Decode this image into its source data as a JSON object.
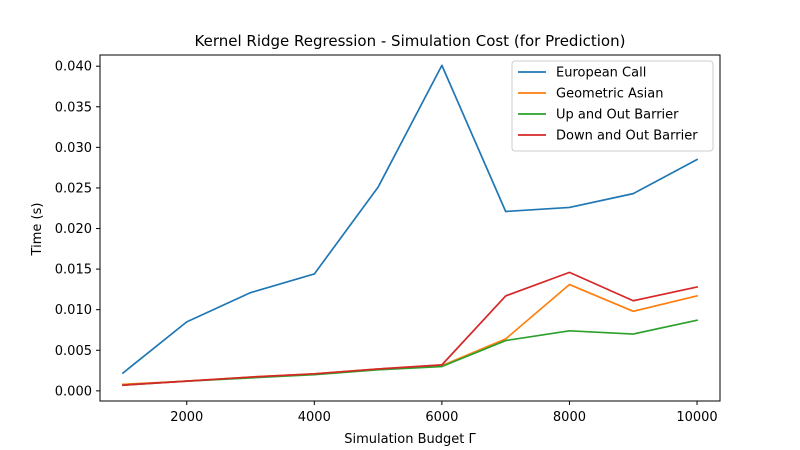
{
  "chart_data": {
    "type": "line",
    "title": "Kernel Ridge Regression - Simulation Cost (for Prediction)",
    "xlabel": "Simulation Budget Γ",
    "ylabel": "Time (s)",
    "x": [
      1000,
      2000,
      3000,
      4000,
      5000,
      6000,
      7000,
      8000,
      9000,
      10000
    ],
    "xlim": [
      640,
      10360
    ],
    "ylim": [
      -0.00125,
      0.04138
    ],
    "xticks": [
      2000,
      4000,
      6000,
      8000,
      10000
    ],
    "xtick_labels": [
      "2000",
      "4000",
      "6000",
      "8000",
      "10000"
    ],
    "yticks": [
      0.0,
      0.005,
      0.01,
      0.015,
      0.02,
      0.025,
      0.03,
      0.035,
      0.04
    ],
    "ytick_labels": [
      "0.000",
      "0.005",
      "0.010",
      "0.015",
      "0.020",
      "0.025",
      "0.030",
      "0.035",
      "0.040"
    ],
    "grid": false,
    "legend_position": "top-right",
    "series": [
      {
        "name": "European Call",
        "color": "#1f77b4",
        "values": [
          0.0022,
          0.0085,
          0.0121,
          0.0144,
          0.0251,
          0.0401,
          0.0221,
          0.0226,
          0.0243,
          0.0285
        ]
      },
      {
        "name": "Geometric Asian",
        "color": "#ff7f0e",
        "values": [
          0.0008,
          0.0012,
          0.0017,
          0.0021,
          0.0027,
          0.0031,
          0.0064,
          0.0131,
          0.0098,
          0.0117
        ]
      },
      {
        "name": "Up and Out Barrier",
        "color": "#2ca02c",
        "values": [
          0.0007,
          0.0012,
          0.0016,
          0.002,
          0.0026,
          0.003,
          0.0062,
          0.0074,
          0.007,
          0.0087
        ]
      },
      {
        "name": "Down and Out Barrier",
        "color": "#d62728",
        "values": [
          0.0007,
          0.0012,
          0.0017,
          0.0021,
          0.0027,
          0.0032,
          0.0117,
          0.0146,
          0.0111,
          0.0128
        ]
      }
    ]
  }
}
